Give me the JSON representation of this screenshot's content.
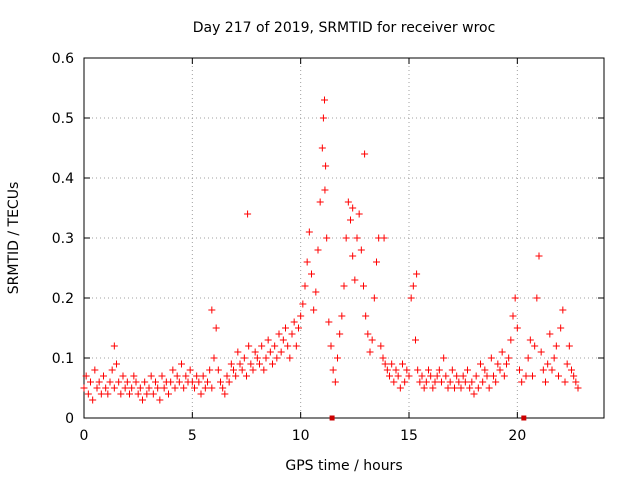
{
  "chart_data": {
    "type": "scatter",
    "title": "Day 217 of 2019, SRMTID for receiver wroc",
    "xlabel": "GPS time / hours",
    "ylabel": "SRMTID / TECUs",
    "xlim": [
      0,
      24
    ],
    "ylim": [
      0,
      0.6
    ],
    "x_ticks": [
      0,
      5,
      10,
      15,
      20
    ],
    "x_tick_labels": [
      "0",
      "5",
      "10",
      "15",
      "20"
    ],
    "y_ticks": [
      0,
      0.1,
      0.2,
      0.3,
      0.4,
      0.5,
      0.6
    ],
    "y_tick_labels": [
      "0",
      "0.1",
      "0.2",
      "0.3",
      "0.4",
      "0.5",
      "0.6"
    ],
    "grid": true,
    "marker": "+",
    "series_color": "#ff0000",
    "gap_marker_color": "#cc0000",
    "gap_markers_x": [
      11.45,
      20.3
    ],
    "series": [
      {
        "name": "SRMTID",
        "x": [
          0.0,
          0.1,
          0.2,
          0.3,
          0.4,
          0.5,
          0.6,
          0.7,
          0.8,
          0.9,
          1.0,
          1.1,
          1.2,
          1.3,
          1.4,
          1.5,
          1.6,
          1.7,
          1.8,
          1.9,
          2.0,
          2.1,
          2.2,
          2.3,
          2.4,
          2.5,
          2.6,
          2.7,
          2.8,
          2.9,
          3.0,
          3.1,
          3.2,
          3.3,
          3.4,
          3.5,
          3.6,
          3.7,
          3.8,
          3.9,
          4.0,
          4.1,
          4.2,
          4.3,
          4.4,
          4.5,
          4.6,
          4.7,
          4.8,
          4.9,
          5.0,
          5.1,
          5.2,
          5.3,
          5.4,
          5.5,
          5.6,
          5.7,
          5.8,
          5.9,
          6.0,
          6.1,
          6.2,
          6.3,
          6.4,
          6.5,
          6.6,
          6.7,
          6.8,
          6.9,
          7.0,
          7.1,
          7.2,
          7.3,
          7.4,
          7.5,
          7.6,
          7.7,
          7.8,
          7.9,
          8.0,
          8.1,
          8.2,
          8.3,
          8.4,
          8.5,
          8.6,
          8.7,
          8.8,
          8.9,
          9.0,
          9.1,
          9.2,
          9.3,
          9.4,
          9.5,
          9.6,
          9.7,
          9.8,
          9.9,
          10.0,
          10.1,
          10.2,
          10.3,
          10.4,
          10.5,
          10.6,
          10.7,
          10.8,
          10.9,
          11.0,
          11.05,
          11.1,
          11.15,
          11.2,
          11.3,
          11.4,
          11.5,
          11.6,
          11.7,
          11.8,
          11.9,
          12.0,
          12.1,
          12.2,
          12.3,
          12.4,
          12.5,
          12.6,
          12.7,
          12.8,
          12.9,
          13.0,
          13.1,
          13.2,
          13.3,
          13.4,
          13.5,
          13.6,
          13.7,
          13.8,
          13.9,
          14.0,
          14.1,
          14.2,
          14.3,
          14.4,
          14.5,
          14.6,
          14.7,
          14.8,
          14.9,
          15.0,
          15.1,
          15.2,
          15.3,
          15.4,
          15.5,
          15.6,
          15.7,
          15.8,
          15.9,
          16.0,
          16.1,
          16.2,
          16.3,
          16.4,
          16.5,
          16.6,
          16.7,
          16.8,
          16.9,
          17.0,
          17.1,
          17.2,
          17.3,
          17.4,
          17.5,
          17.6,
          17.7,
          17.8,
          17.9,
          18.0,
          18.1,
          18.2,
          18.3,
          18.4,
          18.5,
          18.6,
          18.7,
          18.8,
          18.9,
          19.0,
          19.1,
          19.2,
          19.3,
          19.4,
          19.5,
          19.6,
          19.7,
          19.8,
          19.9,
          20.0,
          20.1,
          20.2,
          20.4,
          20.5,
          20.6,
          20.7,
          20.8,
          20.9,
          21.0,
          21.1,
          21.2,
          21.3,
          21.4,
          21.5,
          21.6,
          21.7,
          21.8,
          21.9,
          22.0,
          22.1,
          22.2,
          22.3,
          22.4,
          22.5,
          22.6,
          22.7,
          22.8,
          7.55,
          1.4,
          5.9,
          11.12,
          12.4,
          12.95,
          13.85,
          15.35
        ],
        "y": [
          0.05,
          0.07,
          0.04,
          0.06,
          0.03,
          0.08,
          0.05,
          0.06,
          0.04,
          0.07,
          0.05,
          0.04,
          0.06,
          0.08,
          0.05,
          0.09,
          0.06,
          0.04,
          0.07,
          0.05,
          0.06,
          0.04,
          0.05,
          0.07,
          0.06,
          0.04,
          0.05,
          0.03,
          0.06,
          0.04,
          0.05,
          0.07,
          0.04,
          0.06,
          0.05,
          0.03,
          0.07,
          0.05,
          0.06,
          0.04,
          0.06,
          0.08,
          0.05,
          0.07,
          0.06,
          0.09,
          0.05,
          0.07,
          0.06,
          0.08,
          0.06,
          0.05,
          0.07,
          0.06,
          0.04,
          0.07,
          0.05,
          0.06,
          0.08,
          0.05,
          0.1,
          0.15,
          0.08,
          0.06,
          0.05,
          0.04,
          0.07,
          0.06,
          0.09,
          0.08,
          0.07,
          0.11,
          0.09,
          0.08,
          0.1,
          0.07,
          0.12,
          0.09,
          0.08,
          0.11,
          0.1,
          0.09,
          0.12,
          0.08,
          0.1,
          0.13,
          0.11,
          0.09,
          0.12,
          0.1,
          0.14,
          0.11,
          0.13,
          0.15,
          0.12,
          0.1,
          0.14,
          0.16,
          0.12,
          0.15,
          0.17,
          0.19,
          0.22,
          0.26,
          0.31,
          0.24,
          0.18,
          0.21,
          0.28,
          0.36,
          0.45,
          0.5,
          0.53,
          0.42,
          0.3,
          0.16,
          0.12,
          0.08,
          0.06,
          0.1,
          0.14,
          0.17,
          0.22,
          0.3,
          0.36,
          0.33,
          0.27,
          0.23,
          0.3,
          0.34,
          0.28,
          0.22,
          0.17,
          0.14,
          0.11,
          0.13,
          0.2,
          0.26,
          0.3,
          0.12,
          0.1,
          0.09,
          0.08,
          0.07,
          0.09,
          0.06,
          0.08,
          0.07,
          0.05,
          0.09,
          0.06,
          0.08,
          0.07,
          0.2,
          0.22,
          0.13,
          0.08,
          0.06,
          0.07,
          0.05,
          0.06,
          0.08,
          0.07,
          0.05,
          0.06,
          0.07,
          0.08,
          0.06,
          0.1,
          0.07,
          0.05,
          0.06,
          0.08,
          0.05,
          0.07,
          0.06,
          0.05,
          0.07,
          0.06,
          0.08,
          0.05,
          0.06,
          0.04,
          0.07,
          0.05,
          0.09,
          0.06,
          0.08,
          0.07,
          0.05,
          0.1,
          0.07,
          0.06,
          0.09,
          0.08,
          0.11,
          0.07,
          0.09,
          0.1,
          0.13,
          0.17,
          0.2,
          0.15,
          0.08,
          0.06,
          0.07,
          0.1,
          0.13,
          0.07,
          0.12,
          0.2,
          0.27,
          0.11,
          0.08,
          0.06,
          0.09,
          0.14,
          0.08,
          0.1,
          0.12,
          0.07,
          0.15,
          0.18,
          0.06,
          0.09,
          0.12,
          0.08,
          0.07,
          0.06,
          0.05,
          0.34,
          0.12,
          0.18,
          0.38,
          0.35,
          0.44,
          0.3,
          0.24
        ]
      }
    ]
  }
}
